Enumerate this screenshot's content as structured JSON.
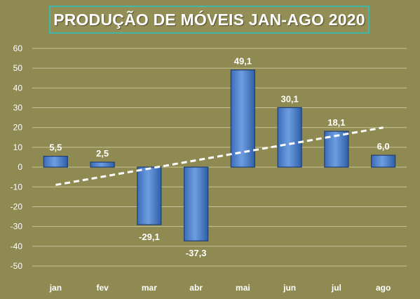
{
  "title": "PRODUÇÃO DE MÓVEIS JAN-AGO 2020",
  "colors": {
    "background": "#8f8a52",
    "bar_fill_top": "#6e9ee0",
    "bar_fill_bottom": "#2e5ea8",
    "bar_border": "#1f3e73",
    "gridline": "#c9c49a",
    "trendline": "#ffffff",
    "text": "#ffffff",
    "title_border": "#3fb8a8"
  },
  "chart_data": {
    "type": "bar",
    "title": "PRODUÇÃO DE MÓVEIS JAN-AGO 2020",
    "categories": [
      "jan",
      "fev",
      "mar",
      "abr",
      "mai",
      "jun",
      "jul",
      "ago"
    ],
    "values": [
      5.5,
      2.5,
      -29.1,
      -37.3,
      49.1,
      30.1,
      18.1,
      6.0
    ],
    "data_labels": [
      "5,5",
      "2,5",
      "-29,1",
      "-37,3",
      "49,1",
      "30,1",
      "18,1",
      "6,0"
    ],
    "ylim": [
      -50,
      60
    ],
    "yticks": [
      60,
      50,
      40,
      30,
      20,
      10,
      0,
      -10,
      -20,
      -30,
      -40,
      -50
    ],
    "ytick_labels": [
      "60",
      "50",
      "40",
      "30",
      "20",
      "10",
      "0",
      "-10",
      "-20",
      "-30",
      "-40",
      "-50"
    ],
    "grid": true,
    "trendline": {
      "type": "linear",
      "style": "dashed",
      "start": -9,
      "end": 20
    },
    "legend": "none"
  }
}
